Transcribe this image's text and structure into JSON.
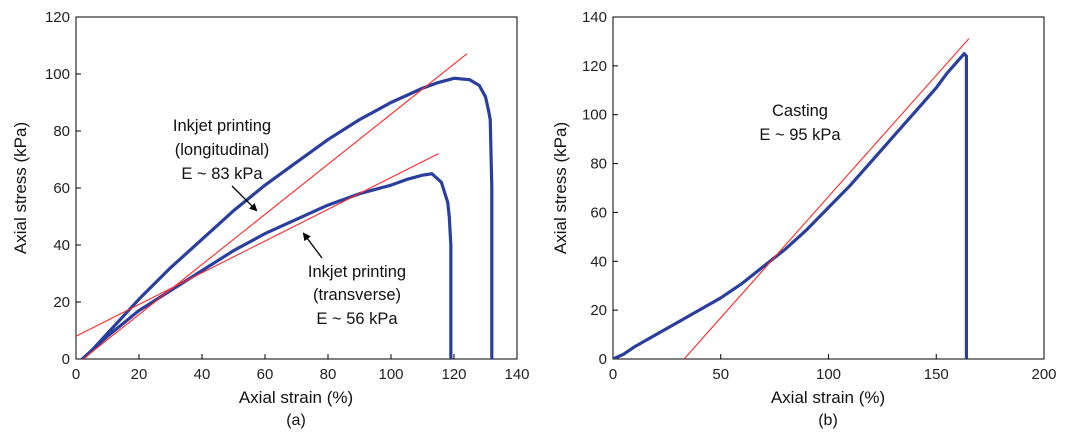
{
  "chart_data": [
    {
      "type": "line",
      "panel_label": "(a)",
      "xlabel": "Axial strain (%)",
      "ylabel": "Axial stress (kPa)",
      "xlim": [
        0,
        140
      ],
      "ylim": [
        0,
        120
      ],
      "xticks": [
        0,
        20,
        40,
        60,
        80,
        100,
        120,
        140
      ],
      "yticks": [
        0,
        20,
        40,
        60,
        80,
        100,
        120
      ],
      "grid": false,
      "series": [
        {
          "color": "#2a3f9d",
          "x": [
            2,
            5,
            10,
            20,
            30,
            40,
            50,
            60,
            70,
            80,
            90,
            100,
            110,
            115,
            120,
            125,
            128,
            130,
            131,
            131.5,
            132,
            132,
            132
          ],
          "y": [
            0,
            3,
            9,
            21,
            32,
            42,
            52,
            61,
            69,
            77,
            84,
            90,
            95,
            97,
            98.5,
            98,
            96,
            92,
            87,
            84,
            60,
            20,
            0
          ]
        },
        {
          "color": "#2a3f9d",
          "x": [
            2,
            5,
            10,
            20,
            30,
            40,
            50,
            60,
            70,
            80,
            90,
            100,
            105,
            110,
            113,
            116,
            118,
            118.5,
            119,
            119,
            119
          ],
          "y": [
            0,
            3,
            8,
            17,
            24,
            31,
            38,
            44,
            49,
            54,
            58,
            61,
            63,
            64.5,
            65,
            62,
            55,
            50,
            40,
            15,
            0
          ]
        },
        {
          "color": "#ff2a2a",
          "x": [
            0,
            124
          ],
          "y": [
            -2,
            107
          ]
        },
        {
          "color": "#ff2a2a",
          "x": [
            0,
            115
          ],
          "y": [
            8,
            72
          ]
        }
      ],
      "annotations": [
        {
          "lines": [
            "Inkjet printing",
            "(longitudinal)",
            "E ~ 83 kPa"
          ]
        },
        {
          "lines": [
            "Inkjet printing",
            "(transverse)",
            "E ~ 56 kPa"
          ]
        }
      ]
    },
    {
      "type": "line",
      "panel_label": "(b)",
      "xlabel": "Axial strain (%)",
      "ylabel": "Axial stress (kPa)",
      "xlim": [
        0,
        200
      ],
      "ylim": [
        0,
        140
      ],
      "xticks": [
        0,
        50,
        100,
        150,
        200
      ],
      "yticks": [
        0,
        20,
        40,
        60,
        80,
        100,
        120,
        140
      ],
      "grid": false,
      "series": [
        {
          "color": "#2a3f9d",
          "x": [
            0,
            5,
            10,
            20,
            30,
            40,
            50,
            60,
            70,
            80,
            90,
            100,
            110,
            120,
            130,
            140,
            150,
            155,
            160,
            162,
            163,
            164,
            164,
            164
          ],
          "y": [
            0,
            2,
            5,
            10,
            15,
            20,
            25,
            31,
            38,
            45,
            53,
            62,
            71,
            81,
            91,
            101,
            111,
            117,
            122,
            124,
            125,
            124,
            60,
            0
          ]
        },
        {
          "color": "#ff2a2a",
          "x": [
            33,
            165
          ],
          "y": [
            0,
            131
          ]
        }
      ],
      "annotations": [
        {
          "lines": [
            "Casting",
            "E ~ 95 kPa"
          ]
        }
      ]
    }
  ]
}
